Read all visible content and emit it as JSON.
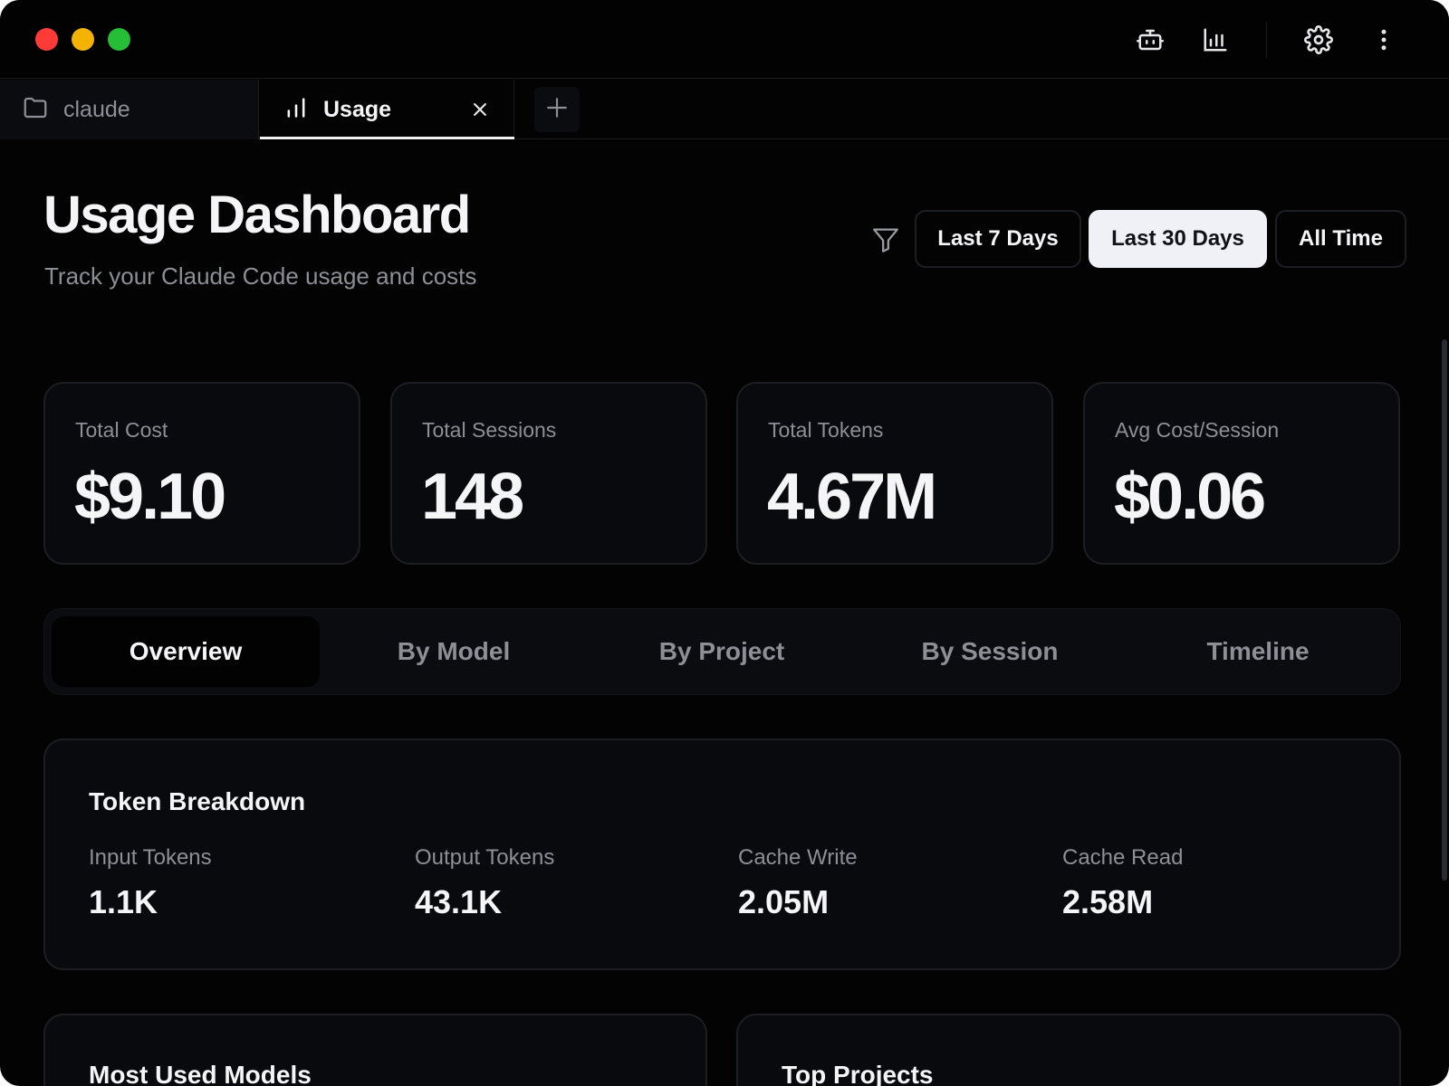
{
  "titlebar": {
    "icons": [
      "robot-icon",
      "bar-chart-icon",
      "gear-icon",
      "more-vertical-icon"
    ]
  },
  "tabs": [
    {
      "label": "claude",
      "icon": "folder-icon",
      "active": false
    },
    {
      "label": "Usage",
      "icon": "bar-chart-icon",
      "active": true
    }
  ],
  "header": {
    "title": "Usage Dashboard",
    "subtitle": "Track your Claude Code usage and costs"
  },
  "date_range": {
    "options": [
      "Last 7 Days",
      "Last 30 Days",
      "All Time"
    ],
    "selected": "Last 30 Days"
  },
  "stats": [
    {
      "label": "Total Cost",
      "value": "$9.10"
    },
    {
      "label": "Total Sessions",
      "value": "148"
    },
    {
      "label": "Total Tokens",
      "value": "4.67M"
    },
    {
      "label": "Avg Cost/Session",
      "value": "$0.06"
    }
  ],
  "view_tabs": {
    "items": [
      "Overview",
      "By Model",
      "By Project",
      "By Session",
      "Timeline"
    ],
    "selected": "Overview"
  },
  "token_breakdown": {
    "title": "Token Breakdown",
    "items": [
      {
        "label": "Input Tokens",
        "value": "1.1K"
      },
      {
        "label": "Output Tokens",
        "value": "43.1K"
      },
      {
        "label": "Cache Write",
        "value": "2.05M"
      },
      {
        "label": "Cache Read",
        "value": "2.58M"
      }
    ]
  },
  "sections": {
    "models_title": "Most Used Models",
    "projects_title": "Top Projects"
  },
  "colors": {
    "background": "#030303",
    "card": "#090a0d",
    "border": "#1d1e22",
    "text": "#f5f5f7",
    "muted": "#8d8f96",
    "selected_button": "#eff1f7",
    "traffic_red": "#fe3b36",
    "traffic_yellow": "#f4b300",
    "traffic_green": "#26bd37"
  }
}
